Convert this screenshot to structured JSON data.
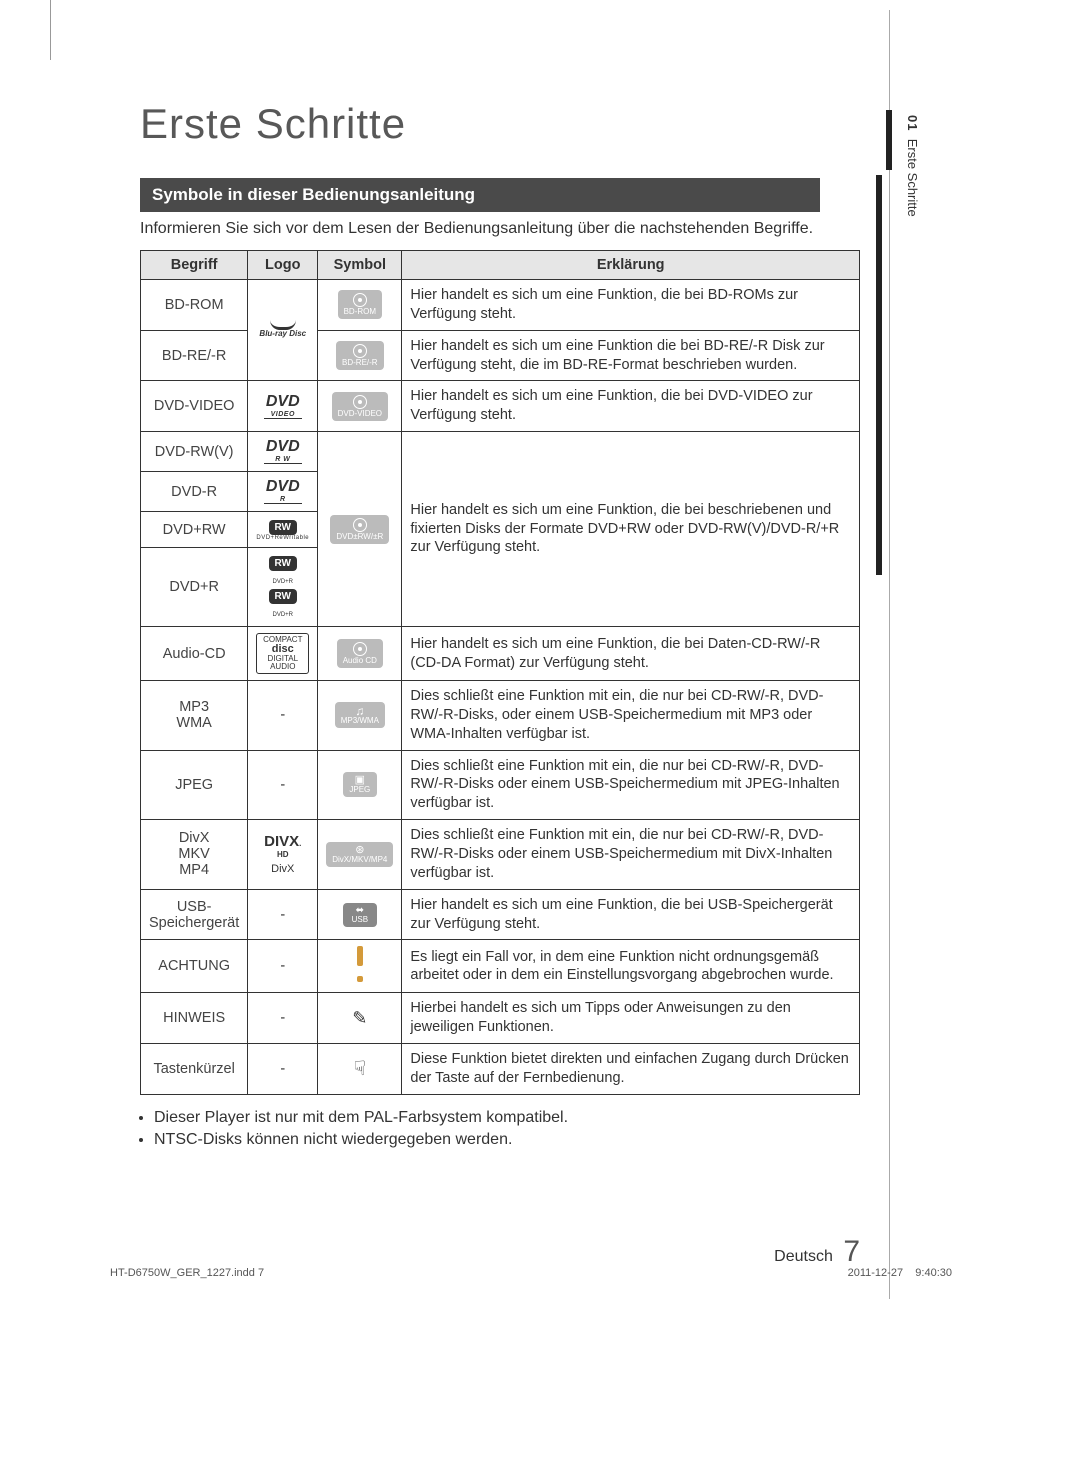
{
  "page": {
    "title": "Erste Schritte",
    "section_header": "Symbole in dieser Bedienungsanleitung",
    "intro": "Informieren Sie sich vor dem Lesen der Bedienungsanleitung über die nachstehenden Begriffe.",
    "side_tab_num": "01",
    "side_tab_label": "Erste Schritte",
    "footer_lang": "Deutsch",
    "footer_page": "7",
    "footer_file": "HT-D6750W_GER_1227.indd   7",
    "footer_date": "2011-12-27",
    "footer_time": "9:40:30"
  },
  "table": {
    "headers": {
      "begriff": "Begriff",
      "logo": "Logo",
      "symbol": "Symbol",
      "erkl": "Erklärung"
    },
    "rows": [
      {
        "begriff": "BD-ROM",
        "logo_type": "bluray",
        "symbol_label": "BD-ROM",
        "erkl": "Hier handelt es sich um eine Funktion, die bei BD-ROMs zur Verfügung steht.",
        "logo_rowspan": 2
      },
      {
        "begriff": "BD-RE/-R",
        "logo_type": "skip",
        "symbol_label": "BD-RE/-R",
        "erkl": "Hier handelt es sich um eine Funktion die bei BD-RE/-R Disk zur Verfügung steht, die im BD-RE-Format beschrieben wurden."
      },
      {
        "begriff": "DVD-VIDEO",
        "logo_type": "dvd_video",
        "symbol_label": "DVD-VIDEO",
        "erkl": "Hier handelt es sich um eine Funktion, die bei DVD-VIDEO zur Verfügung steht."
      },
      {
        "begriff": "DVD-RW(V)",
        "logo_type": "dvd_rw",
        "symbol_label": "",
        "erkl_rowspan": 4,
        "symbol_rowspan": 4,
        "symbol_label_merged": "DVD±RW/±R",
        "erkl": "Hier handelt es sich um eine Funktion, die bei beschriebenen und fixierten Disks der Formate DVD+RW oder DVD-RW(V)/DVD-R/+R  zur Verfügung steht."
      },
      {
        "begriff": "DVD-R",
        "logo_type": "dvd_r"
      },
      {
        "begriff": "DVD+RW",
        "logo_type": "rw_pill"
      },
      {
        "begriff": "DVD+R",
        "logo_type": "rw_double"
      },
      {
        "begriff": "Audio-CD",
        "logo_type": "cd",
        "symbol_label": "Audio CD",
        "erkl": "Hier handelt es sich um eine Funktion, die bei Daten-CD-RW/-R (CD-DA Format) zur Verfügung steht."
      },
      {
        "begriff": "MP3\nWMA",
        "logo_type": "dash",
        "symbol_label": "MP3/WMA",
        "symbol_style": "music",
        "erkl": "Dies schließt eine Funktion mit ein, die nur bei CD-RW/-R, DVD-RW/-R-Disks, oder einem USB-Speichermedium mit MP3 oder WMA-Inhalten verfügbar ist."
      },
      {
        "begriff": "JPEG",
        "logo_type": "dash",
        "symbol_label": "JPEG",
        "symbol_style": "photo",
        "erkl": "Dies schließt eine Funktion mit ein, die nur bei CD-RW/-R, DVD-RW/-R-Disks oder einem USB-Speichermedium mit JPEG-Inhalten verfügbar ist."
      },
      {
        "begriff": "DivX\nMKV\nMP4",
        "logo_type": "divx",
        "symbol_label": "DivX/MKV/MP4",
        "symbol_style": "video",
        "erkl": "Dies schließt eine Funktion mit ein, die nur bei CD-RW/-R, DVD-RW/-R-Disks oder einem USB-Speichermedium mit DivX-Inhalten verfügbar ist."
      },
      {
        "begriff": "USB-\nSpeichergerät",
        "logo_type": "dash",
        "symbol_label": "USB",
        "symbol_style": "usb",
        "erkl": "Hier handelt es sich um eine Funktion, die bei USB-Speichergerät zur Verfügung steht."
      },
      {
        "begriff": "ACHTUNG",
        "logo_type": "dash",
        "symbol_style": "caution",
        "erkl": "Es liegt ein Fall vor, in dem eine Funktion nicht ordnungsgemäß arbeitet oder in dem ein Einstellungsvorgang abgebrochen wurde."
      },
      {
        "begriff": "HINWEIS",
        "logo_type": "dash",
        "symbol_style": "note",
        "erkl": "Hierbei handelt es sich um Tipps oder Anweisungen zu den jeweiligen Funktionen."
      },
      {
        "begriff": "Tastenkürzel",
        "logo_type": "dash",
        "symbol_style": "shortcut",
        "erkl": "Diese Funktion bietet direkten und einfachen Zugang durch Drücken der Taste auf der Fernbedienung."
      }
    ]
  },
  "bullets": [
    "Dieser Player ist nur mit dem PAL-Farbsystem kompatibel.",
    "NTSC-Disks können nicht wiedergegeben werden."
  ],
  "colors": {
    "header_bg": "#4a4a4a",
    "th_bg": "#e6e6e6",
    "border": "#333333",
    "text": "#333333",
    "title": "#585858"
  }
}
